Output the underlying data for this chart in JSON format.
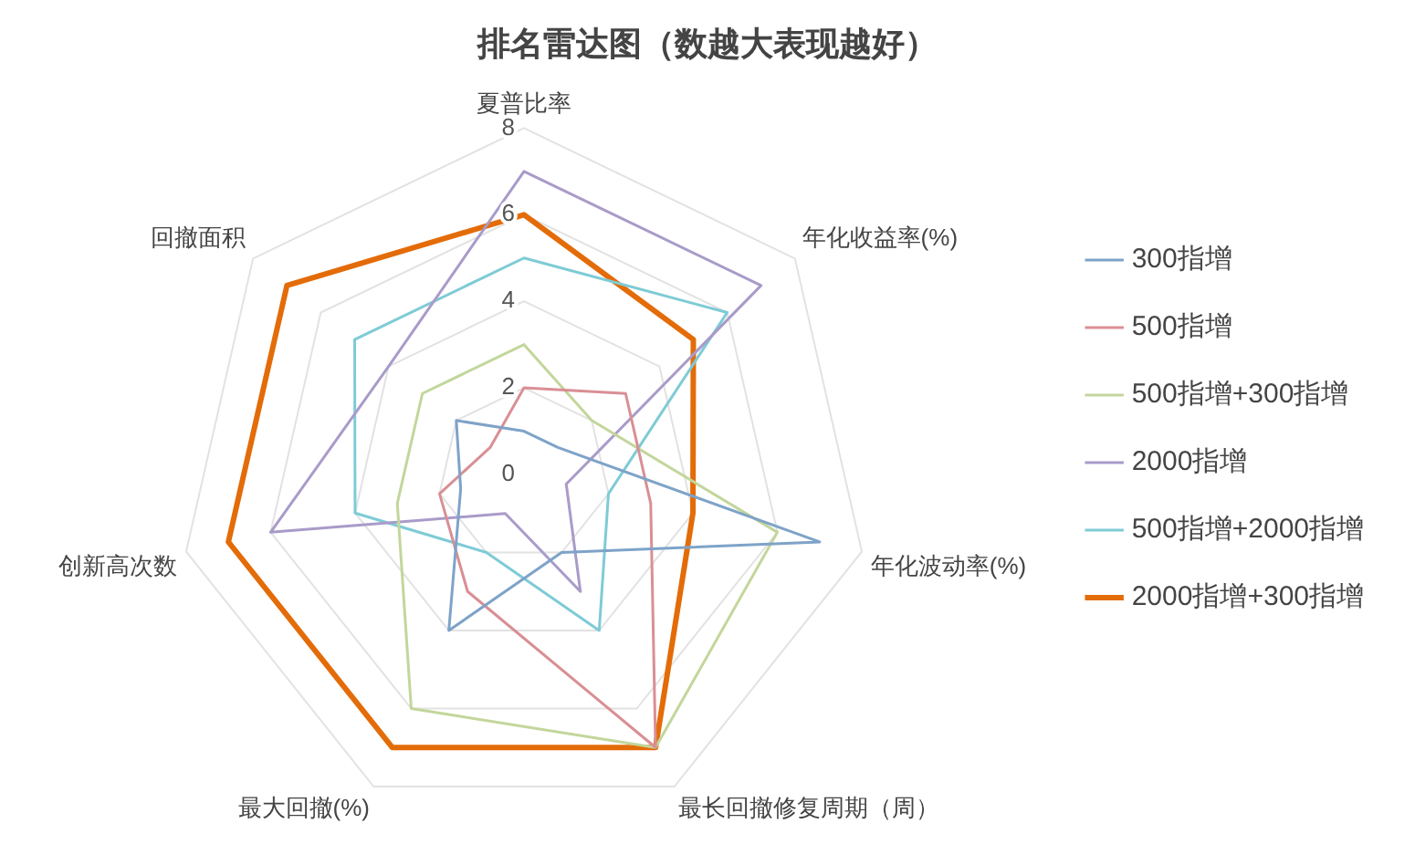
{
  "chart_data": {
    "type": "radar",
    "title": "排名雷达图（数越大表现越好）",
    "categories": [
      "夏普比率",
      "年化收益率(%)",
      "年化波动率(%)",
      "最长回撤修复周期（周）",
      "最大回撤(%)",
      "创新高次数",
      "回撤面积"
    ],
    "series": [
      {
        "name": "300指增",
        "color": "#7ea3c8",
        "values": [
          1,
          1,
          7,
          2,
          4,
          1.5,
          2
        ]
      },
      {
        "name": "500指增",
        "color": "#d98f94",
        "values": [
          2,
          3,
          3,
          7,
          3,
          2,
          1
        ]
      },
      {
        "name": "500指增+300指增",
        "color": "#c3d69b",
        "values": [
          3,
          2,
          6,
          7,
          6,
          3,
          3
        ]
      },
      {
        "name": "2000指增",
        "color": "#a99bc9",
        "values": [
          7,
          7,
          1,
          3,
          1,
          6,
          4
        ]
      },
      {
        "name": "500指增+2000指增",
        "color": "#7ecbd6",
        "values": [
          5,
          6,
          2,
          4,
          2,
          4,
          5
        ]
      },
      {
        "name": "2000指增+300指增",
        "color": "#e36c09",
        "values": [
          6,
          5,
          4,
          7,
          7,
          7,
          7
        ]
      }
    ],
    "ylim": [
      0,
      8
    ],
    "yticks": [
      0,
      2,
      4,
      6,
      8
    ],
    "grid": true,
    "legend": "right",
    "marker": "none",
    "line_style": "solid"
  }
}
